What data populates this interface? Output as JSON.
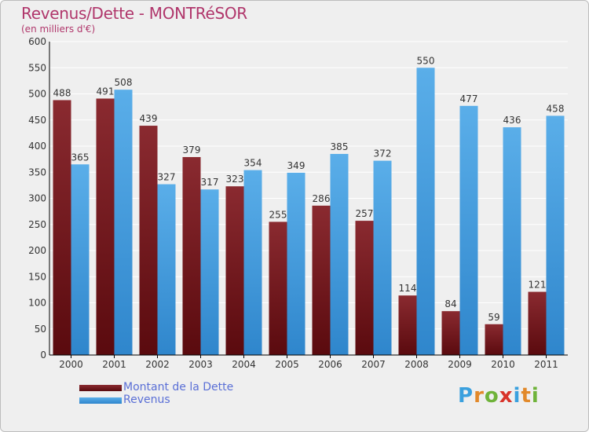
{
  "title": "Revenus/Dette - MONTRéSOR",
  "subtitle": "(en milliers d'€)",
  "logo": {
    "letters": [
      "P",
      "r",
      "o",
      "x",
      "i",
      "t",
      "i"
    ],
    "colors": [
      "#3aa0de",
      "#e2892a",
      "#6fb33a",
      "#d8332a",
      "#3aa0de",
      "#e2892a",
      "#6fb33a"
    ]
  },
  "colors": {
    "dette": "#7a1e22",
    "revenus": "#4ea3e3",
    "grid": "#ffffff",
    "axis": "#000000",
    "legend_text": "#5a6fd6",
    "title": "#b0366b"
  },
  "chart_data": {
    "type": "bar",
    "categories": [
      "2000",
      "2001",
      "2002",
      "2003",
      "2004",
      "2005",
      "2006",
      "2007",
      "2008",
      "2009",
      "2010",
      "2011"
    ],
    "series": [
      {
        "name": "Montant de la Dette",
        "values": [
          488,
          491,
          439,
          379,
          323,
          255,
          286,
          257,
          114,
          84,
          59,
          121
        ]
      },
      {
        "name": "Revenus",
        "values": [
          365,
          508,
          327,
          317,
          354,
          349,
          385,
          372,
          550,
          477,
          436,
          458
        ]
      }
    ],
    "title": "Revenus/Dette - MONTRéSOR",
    "subtitle": "(en milliers d'€)",
    "xlabel": "",
    "ylabel": "",
    "ylim": [
      0,
      600
    ],
    "yticks": [
      0,
      50,
      100,
      150,
      200,
      250,
      300,
      350,
      400,
      450,
      500,
      550,
      600
    ],
    "grid": true,
    "legend": "bottom-left",
    "data_labels": true
  }
}
